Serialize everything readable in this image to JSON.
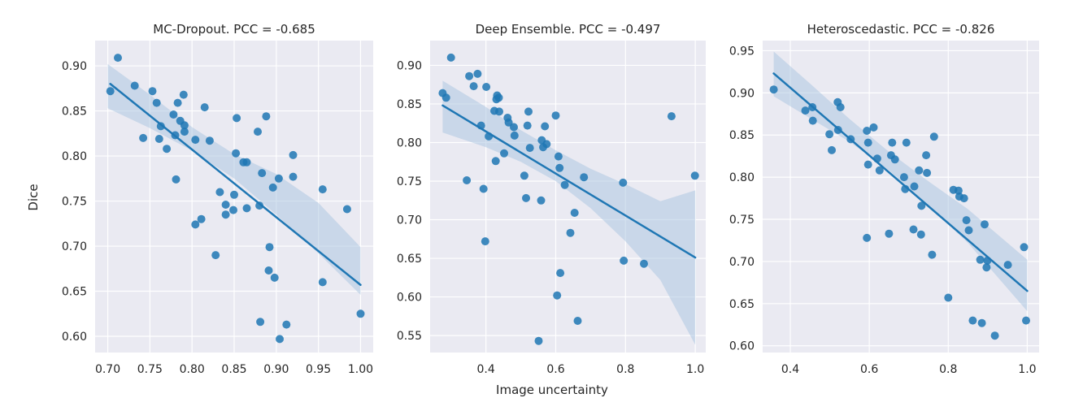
{
  "figure": {
    "ylabel": "Dice",
    "xlabel": "Image uncertainty",
    "colors": {
      "panel_bg": "#EAEAF2",
      "grid": "#FFFFFF",
      "point": "#1F77B4",
      "line": "#1F77B4",
      "band": "#A7C4E0"
    }
  },
  "chart_data": [
    {
      "type": "scatter",
      "title": "MC-Dropout. PCC = -0.685",
      "xlabel": "",
      "ylabel": "Dice",
      "xlim": [
        0.685,
        1.015
      ],
      "ylim": [
        0.582,
        0.928
      ],
      "xticks": [
        0.7,
        0.75,
        0.8,
        0.85,
        0.9,
        0.95,
        1.0
      ],
      "xtick_labels": [
        "0.70",
        "0.75",
        "0.80",
        "0.85",
        "0.90",
        "0.95",
        "1.00"
      ],
      "yticks": [
        0.6,
        0.65,
        0.7,
        0.75,
        0.8,
        0.85,
        0.9
      ],
      "ytick_labels": [
        "0.60",
        "0.65",
        "0.70",
        "0.75",
        "0.80",
        "0.85",
        "0.90"
      ],
      "points": [
        [
          0.703,
          0.872
        ],
        [
          0.712,
          0.909
        ],
        [
          0.732,
          0.878
        ],
        [
          0.742,
          0.82
        ],
        [
          0.753,
          0.872
        ],
        [
          0.758,
          0.859
        ],
        [
          0.761,
          0.819
        ],
        [
          0.763,
          0.833
        ],
        [
          0.77,
          0.808
        ],
        [
          0.778,
          0.846
        ],
        [
          0.78,
          0.823
        ],
        [
          0.781,
          0.774
        ],
        [
          0.783,
          0.859
        ],
        [
          0.786,
          0.839
        ],
        [
          0.79,
          0.868
        ],
        [
          0.791,
          0.834
        ],
        [
          0.791,
          0.827
        ],
        [
          0.804,
          0.818
        ],
        [
          0.804,
          0.724
        ],
        [
          0.811,
          0.73
        ],
        [
          0.815,
          0.854
        ],
        [
          0.821,
          0.817
        ],
        [
          0.828,
          0.69
        ],
        [
          0.833,
          0.76
        ],
        [
          0.84,
          0.746
        ],
        [
          0.84,
          0.735
        ],
        [
          0.849,
          0.74
        ],
        [
          0.85,
          0.757
        ],
        [
          0.852,
          0.803
        ],
        [
          0.853,
          0.842
        ],
        [
          0.861,
          0.793
        ],
        [
          0.865,
          0.793
        ],
        [
          0.865,
          0.742
        ],
        [
          0.878,
          0.827
        ],
        [
          0.88,
          0.745
        ],
        [
          0.881,
          0.616
        ],
        [
          0.883,
          0.781
        ],
        [
          0.888,
          0.844
        ],
        [
          0.891,
          0.673
        ],
        [
          0.892,
          0.699
        ],
        [
          0.896,
          0.765
        ],
        [
          0.898,
          0.665
        ],
        [
          0.903,
          0.775
        ],
        [
          0.904,
          0.597
        ],
        [
          0.912,
          0.613
        ],
        [
          0.92,
          0.801
        ],
        [
          0.92,
          0.777
        ],
        [
          0.955,
          0.763
        ],
        [
          0.955,
          0.66
        ],
        [
          0.984,
          0.741
        ],
        [
          1.0,
          0.625
        ]
      ],
      "regression": {
        "x": [
          0.703,
          1.0
        ],
        "y": [
          0.88,
          0.657
        ]
      },
      "ci_band": {
        "x": [
          0.7,
          0.75,
          0.8,
          0.85,
          0.9,
          0.95,
          1.0
        ],
        "lower": [
          0.853,
          0.831,
          0.806,
          0.775,
          0.735,
          0.692,
          0.646
        ],
        "upper": [
          0.902,
          0.868,
          0.832,
          0.802,
          0.78,
          0.748,
          0.699
        ]
      }
    },
    {
      "type": "scatter",
      "title": "Deep Ensemble. PCC = -0.497",
      "xlabel": "Image uncertainty",
      "ylabel": "",
      "xlim": [
        0.24,
        1.03
      ],
      "ylim": [
        0.528,
        0.932
      ],
      "xticks": [
        0.4,
        0.6,
        0.8,
        1.0
      ],
      "xtick_labels": [
        "0.4",
        "0.6",
        "0.8",
        "1.0"
      ],
      "yticks": [
        0.55,
        0.6,
        0.65,
        0.7,
        0.75,
        0.8,
        0.85,
        0.9
      ],
      "ytick_labels": [
        "0.55",
        "0.60",
        "0.65",
        "0.70",
        "0.75",
        "0.80",
        "0.85",
        "0.90"
      ],
      "points": [
        [
          0.276,
          0.864
        ],
        [
          0.286,
          0.858
        ],
        [
          0.3,
          0.91
        ],
        [
          0.345,
          0.751
        ],
        [
          0.352,
          0.886
        ],
        [
          0.365,
          0.873
        ],
        [
          0.376,
          0.889
        ],
        [
          0.386,
          0.822
        ],
        [
          0.393,
          0.74
        ],
        [
          0.398,
          0.672
        ],
        [
          0.401,
          0.872
        ],
        [
          0.408,
          0.808
        ],
        [
          0.424,
          0.841
        ],
        [
          0.428,
          0.776
        ],
        [
          0.43,
          0.856
        ],
        [
          0.432,
          0.861
        ],
        [
          0.437,
          0.858
        ],
        [
          0.438,
          0.84
        ],
        [
          0.452,
          0.786
        ],
        [
          0.462,
          0.832
        ],
        [
          0.465,
          0.826
        ],
        [
          0.48,
          0.82
        ],
        [
          0.482,
          0.809
        ],
        [
          0.51,
          0.757
        ],
        [
          0.515,
          0.728
        ],
        [
          0.519,
          0.822
        ],
        [
          0.522,
          0.84
        ],
        [
          0.526,
          0.793
        ],
        [
          0.551,
          0.543
        ],
        [
          0.558,
          0.725
        ],
        [
          0.56,
          0.803
        ],
        [
          0.564,
          0.794
        ],
        [
          0.569,
          0.821
        ],
        [
          0.574,
          0.798
        ],
        [
          0.6,
          0.835
        ],
        [
          0.604,
          0.602
        ],
        [
          0.608,
          0.782
        ],
        [
          0.611,
          0.767
        ],
        [
          0.613,
          0.631
        ],
        [
          0.626,
          0.745
        ],
        [
          0.642,
          0.683
        ],
        [
          0.654,
          0.709
        ],
        [
          0.663,
          0.569
        ],
        [
          0.681,
          0.755
        ],
        [
          0.793,
          0.748
        ],
        [
          0.795,
          0.647
        ],
        [
          0.853,
          0.643
        ],
        [
          0.932,
          0.834
        ],
        [
          0.999,
          0.757
        ]
      ],
      "regression": {
        "x": [
          0.276,
          1.0
        ],
        "y": [
          0.848,
          0.651
        ]
      },
      "ci_band": {
        "x": [
          0.276,
          0.4,
          0.5,
          0.6,
          0.7,
          0.8,
          0.9,
          1.0
        ],
        "lower": [
          0.813,
          0.794,
          0.775,
          0.75,
          0.715,
          0.672,
          0.622,
          0.538
        ],
        "upper": [
          0.88,
          0.846,
          0.816,
          0.79,
          0.766,
          0.746,
          0.724,
          0.738
        ]
      }
    },
    {
      "type": "scatter",
      "title": "Heteroscedastic. PCC = -0.826",
      "xlabel": "",
      "ylabel": "",
      "xlim": [
        0.33,
        1.03
      ],
      "ylim": [
        0.592,
        0.962
      ],
      "xticks": [
        0.4,
        0.6,
        0.8,
        1.0
      ],
      "xtick_labels": [
        "0.4",
        "0.6",
        "0.8",
        "1.0"
      ],
      "yticks": [
        0.6,
        0.65,
        0.7,
        0.75,
        0.8,
        0.85,
        0.9,
        0.95
      ],
      "ytick_labels": [
        "0.60",
        "0.65",
        "0.70",
        "0.75",
        "0.80",
        "0.85",
        "0.90",
        "0.95"
      ],
      "points": [
        [
          0.358,
          0.904
        ],
        [
          0.438,
          0.879
        ],
        [
          0.456,
          0.883
        ],
        [
          0.457,
          0.867
        ],
        [
          0.499,
          0.851
        ],
        [
          0.505,
          0.832
        ],
        [
          0.52,
          0.889
        ],
        [
          0.521,
          0.856
        ],
        [
          0.527,
          0.883
        ],
        [
          0.553,
          0.845
        ],
        [
          0.594,
          0.855
        ],
        [
          0.594,
          0.728
        ],
        [
          0.597,
          0.841
        ],
        [
          0.597,
          0.815
        ],
        [
          0.611,
          0.859
        ],
        [
          0.62,
          0.822
        ],
        [
          0.626,
          0.808
        ],
        [
          0.65,
          0.733
        ],
        [
          0.655,
          0.826
        ],
        [
          0.658,
          0.841
        ],
        [
          0.665,
          0.821
        ],
        [
          0.688,
          0.8
        ],
        [
          0.691,
          0.786
        ],
        [
          0.694,
          0.841
        ],
        [
          0.712,
          0.738
        ],
        [
          0.714,
          0.789
        ],
        [
          0.726,
          0.808
        ],
        [
          0.731,
          0.732
        ],
        [
          0.732,
          0.766
        ],
        [
          0.744,
          0.826
        ],
        [
          0.746,
          0.805
        ],
        [
          0.759,
          0.708
        ],
        [
          0.764,
          0.848
        ],
        [
          0.8,
          0.657
        ],
        [
          0.813,
          0.785
        ],
        [
          0.826,
          0.784
        ],
        [
          0.828,
          0.777
        ],
        [
          0.84,
          0.775
        ],
        [
          0.846,
          0.749
        ],
        [
          0.852,
          0.737
        ],
        [
          0.862,
          0.63
        ],
        [
          0.881,
          0.702
        ],
        [
          0.885,
          0.627
        ],
        [
          0.892,
          0.744
        ],
        [
          0.897,
          0.693
        ],
        [
          0.899,
          0.701
        ],
        [
          0.918,
          0.612
        ],
        [
          0.951,
          0.696
        ],
        [
          0.992,
          0.717
        ],
        [
          0.997,
          0.63
        ]
      ],
      "regression": {
        "x": [
          0.358,
          1.0
        ],
        "y": [
          0.923,
          0.665
        ]
      },
      "ci_band": {
        "x": [
          0.358,
          0.45,
          0.55,
          0.65,
          0.75,
          0.85,
          1.0
        ],
        "lower": [
          0.896,
          0.87,
          0.842,
          0.808,
          0.766,
          0.722,
          0.641
        ],
        "upper": [
          0.949,
          0.911,
          0.869,
          0.83,
          0.795,
          0.762,
          0.702
        ]
      }
    }
  ]
}
